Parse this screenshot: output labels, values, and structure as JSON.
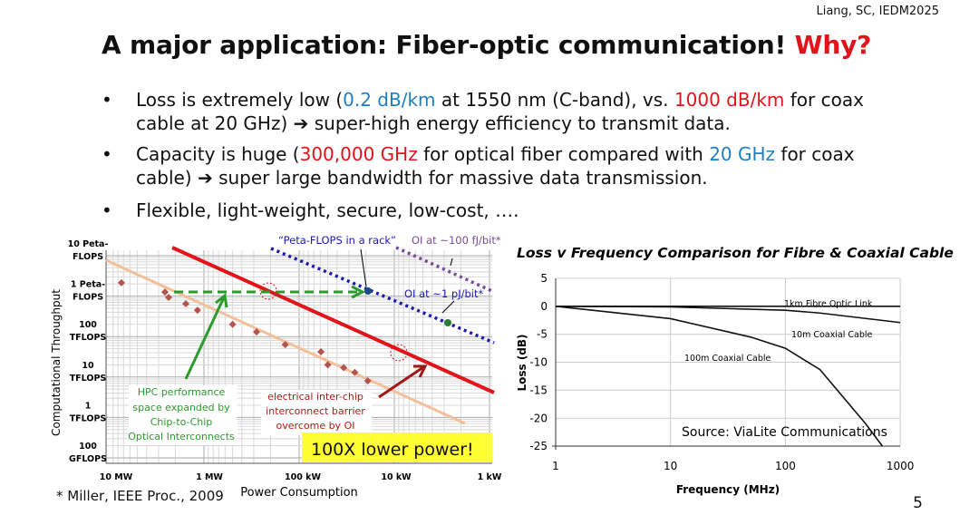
{
  "citation": "Liang, SC, IEDM2025",
  "title": {
    "main": "A major application: Fiber-optic communication! ",
    "highlight": "Why?"
  },
  "bullets": [
    {
      "parts": [
        "Loss is extremely low (",
        "0.2 dB/km",
        " at 1550 nm (C-band), vs. ",
        "1000 dB/km",
        " for coax"
      ],
      "line2": "cable at 20 GHz) ➔ super-high energy efficiency to transmit data."
    },
    {
      "parts": [
        "Capacity is huge (",
        "300,000 GHz",
        " for optical fiber compared with ",
        "20 GHz",
        " for coax"
      ],
      "line2": "cable) ➔ super large bandwidth for massive data transmission."
    },
    {
      "text": "Flexible, light-weight, secure, low-cost, …."
    }
  ],
  "bullet_symbol": "•",
  "footnote": "* Miller, IEEE Proc., 2009",
  "page_number": "5",
  "chart_data": [
    {
      "type": "scatter",
      "xlabel": "Power Consumption",
      "ylabel": "Computational Throughput",
      "x_ticks": [
        "10 MW",
        "1 MW",
        "100 kW",
        "10 kW",
        "1 kW"
      ],
      "y_ticks": [
        [
          "10 Peta-",
          "FLOPS"
        ],
        [
          "1 Peta-",
          "FLOPS"
        ],
        [
          "100",
          "TFLOPS"
        ],
        [
          "10",
          "TFLOPS"
        ],
        [
          "1",
          "TFLOPS"
        ],
        [
          "100",
          "GFLOPS"
        ]
      ],
      "x_unit": "kW",
      "y_unit": "TFLOPS",
      "points": [
        [
          7360,
          2140
        ],
        [
          2570,
          1260
        ],
        [
          2350,
          930
        ],
        [
          1550,
          650
        ],
        [
          1170,
          450
        ],
        [
          500,
          200
        ],
        [
          280,
          130
        ],
        [
          140,
          63
        ],
        [
          59,
          42
        ],
        [
          50,
          20
        ],
        [
          34,
          17
        ],
        [
          26,
          13
        ],
        [
          19,
          8
        ]
      ],
      "annotations": {
        "peta_rack": "“Peta-FLOPS in a rack”",
        "oi_100fj": "OI at  ~100 fJ/bit*",
        "oi_1pj": "OI at  ~1 pJ/bit*",
        "hpc": [
          "HPC performance",
          "space expanded by",
          "Chip-to-Chip",
          "Optical Interconnects"
        ],
        "barrier": [
          "electrical inter-chip",
          "interconnect barrier",
          "overcome by OI"
        ],
        "lower_power": "100X lower power!"
      },
      "colors": {
        "points": "#b5544e",
        "trend": "#f2c09a",
        "red": "#e0141a",
        "blue": "#1a1ab0",
        "purple": "#7a4a9a",
        "green": "#2a9a2a",
        "highlight": "#ffff33"
      }
    },
    {
      "type": "line",
      "title": "Loss v Frequency Comparison for Fibre & Coaxial Cable",
      "xlabel": "Frequency (MHz)",
      "ylabel": "Loss (dB)",
      "x_scale": "log",
      "xlim": [
        1,
        1000
      ],
      "ylim": [
        -25,
        5
      ],
      "x_ticks": [
        "1",
        "10",
        "100",
        "1000"
      ],
      "y_ticks": [
        "5",
        "0",
        "-5",
        "-10",
        "-15",
        "-20",
        "-25"
      ],
      "series": [
        {
          "name": "1km Fibre Optic Link",
          "x": [
            1,
            1000
          ],
          "y": [
            0,
            0
          ]
        },
        {
          "name": "10m Coaxial Cable",
          "x": [
            1,
            10,
            100,
            200,
            1000
          ],
          "y": [
            0,
            -0.1,
            -0.7,
            -1.2,
            -2.9
          ]
        },
        {
          "name": "100m Coaxial Cable",
          "x": [
            1,
            10,
            50,
            100,
            200,
            500,
            700
          ],
          "y": [
            0,
            -2.2,
            -5.5,
            -7.5,
            -11.3,
            -21,
            -25
          ]
        }
      ],
      "source": "Source: ViaLite Communications"
    }
  ]
}
